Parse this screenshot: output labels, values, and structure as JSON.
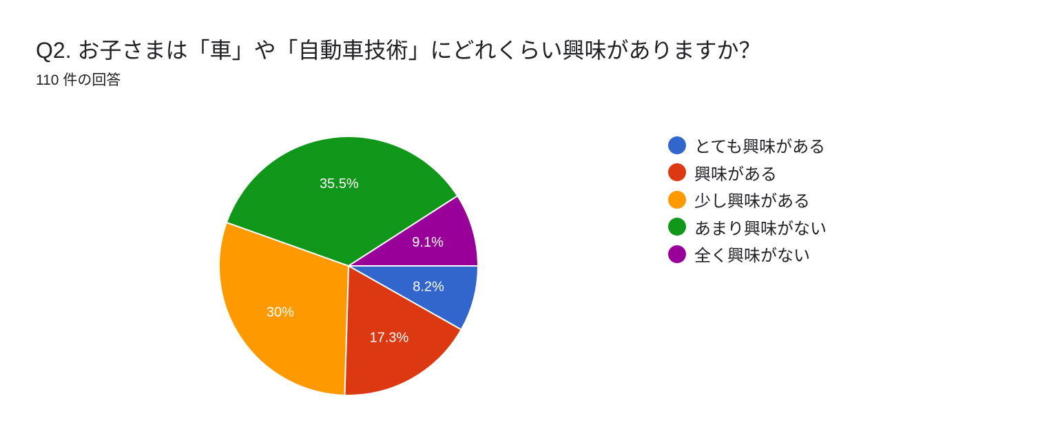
{
  "header": {
    "title": "Q2. お子さまは「車」や「自動車技術」にどれくらい興味がありますか？",
    "subtitle": "110 件の回答"
  },
  "chart_data": {
    "type": "pie",
    "title": "Q2. お子さまは「車」や「自動車技術」にどれくらい興味がありますか？",
    "legend_position": "right",
    "slices": [
      {
        "label": "とても興味がある",
        "value": 8.2,
        "value_label": "8.2%",
        "color": "#3366cc"
      },
      {
        "label": "興味がある",
        "value": 17.3,
        "value_label": "17.3%",
        "color": "#dc3912"
      },
      {
        "label": "少し興味がある",
        "value": 30,
        "value_label": "30%",
        "color": "#ff9900"
      },
      {
        "label": "あまり興味がない",
        "value": 35.5,
        "value_label": "35.5%",
        "color": "#109618"
      },
      {
        "label": "全く興味がない",
        "value": 9.1,
        "value_label": "9.1%",
        "color": "#990099"
      }
    ]
  }
}
